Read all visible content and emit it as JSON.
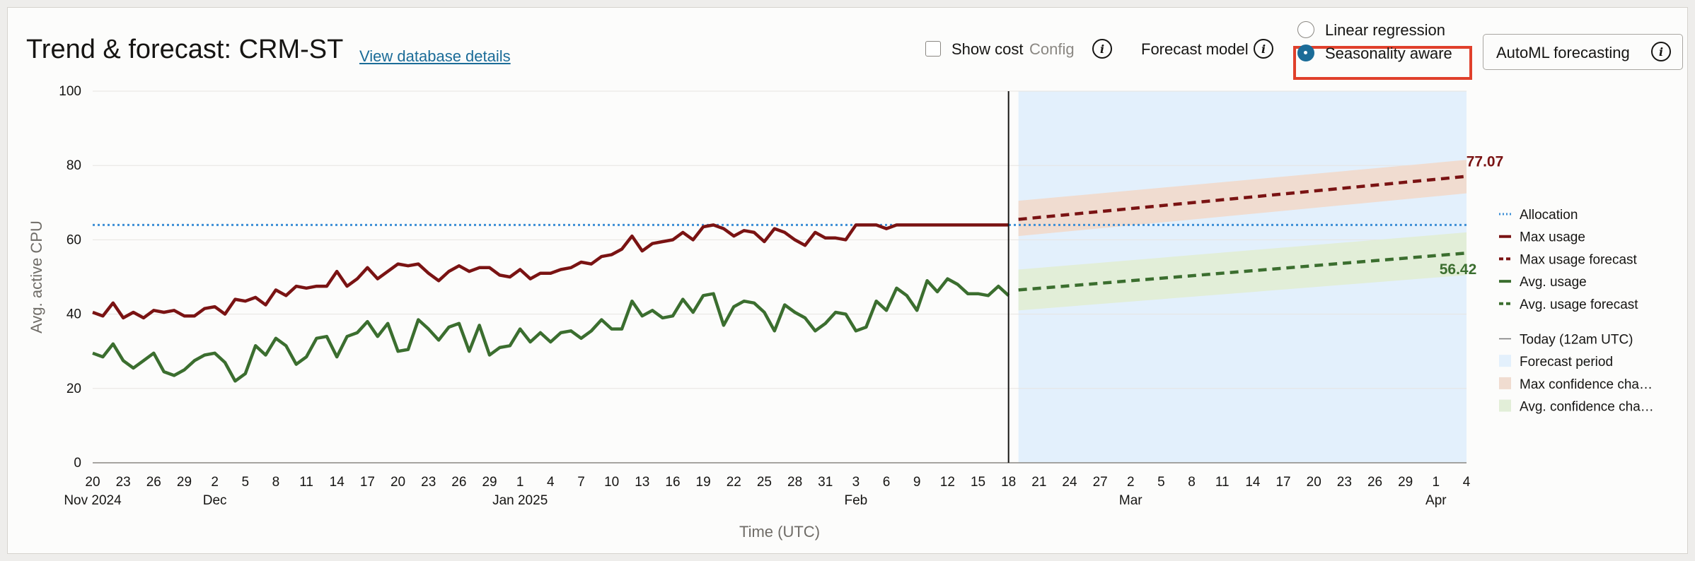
{
  "header": {
    "title": "Trend & forecast: CRM-ST",
    "db_link": "View database details",
    "show_cost_label": "Show cost",
    "config_label": "Config",
    "forecast_model_label": "Forecast model",
    "radio_linear": "Linear regression",
    "radio_seasonal": "Seasonality aware",
    "automl_label": "AutoML forecasting"
  },
  "colors": {
    "max": "#7a1313",
    "avg": "#3b6e2f",
    "allocation": "#3d8fd6",
    "forecast_bg": "#e3f0fc",
    "max_band": "#f0dcd0",
    "avg_band": "#e2eed8"
  },
  "legend": [
    {
      "label": "Allocation",
      "style": "dotted",
      "color": "#3d8fd6"
    },
    {
      "label": "Max usage",
      "style": "solid",
      "color": "#7a1313"
    },
    {
      "label": "Max usage forecast",
      "style": "dashed",
      "color": "#7a1313"
    },
    {
      "label": "Avg. usage",
      "style": "solid",
      "color": "#3b6e2f"
    },
    {
      "label": "Avg. usage forecast",
      "style": "dashed",
      "color": "#3b6e2f"
    },
    {
      "label": "Today (12am UTC)",
      "style": "thin",
      "color": "#777777"
    },
    {
      "label": "Forecast period",
      "style": "box",
      "color": "#e3f0fc"
    },
    {
      "label": "Max confidence cha…",
      "style": "box",
      "color": "#f0dcd0"
    },
    {
      "label": "Avg. confidence cha…",
      "style": "box",
      "color": "#e2eed8"
    }
  ],
  "chart_data": {
    "type": "line",
    "xlabel": "Time (UTC)",
    "ylabel": "Avg. active CPU",
    "ylim": [
      0,
      100
    ],
    "yticks": [
      0,
      20,
      40,
      60,
      80,
      100
    ],
    "x_start": "2024-11-20",
    "today": "2025-02-18",
    "x_end": "2025-04-04",
    "x_tick_labels": [
      {
        "date": "2024-11-20",
        "day": "20",
        "month": "Nov 2024"
      },
      {
        "date": "2024-11-23",
        "day": "23"
      },
      {
        "date": "2024-11-26",
        "day": "26"
      },
      {
        "date": "2024-11-29",
        "day": "29"
      },
      {
        "date": "2024-12-02",
        "day": "2",
        "month": "Dec"
      },
      {
        "date": "2024-12-05",
        "day": "5"
      },
      {
        "date": "2024-12-08",
        "day": "8"
      },
      {
        "date": "2024-12-11",
        "day": "11"
      },
      {
        "date": "2024-12-14",
        "day": "14"
      },
      {
        "date": "2024-12-17",
        "day": "17"
      },
      {
        "date": "2024-12-20",
        "day": "20"
      },
      {
        "date": "2024-12-23",
        "day": "23"
      },
      {
        "date": "2024-12-26",
        "day": "26"
      },
      {
        "date": "2024-12-29",
        "day": "29"
      },
      {
        "date": "2025-01-01",
        "day": "1",
        "month": "Jan 2025"
      },
      {
        "date": "2025-01-04",
        "day": "4"
      },
      {
        "date": "2025-01-07",
        "day": "7"
      },
      {
        "date": "2025-01-10",
        "day": "10"
      },
      {
        "date": "2025-01-13",
        "day": "13"
      },
      {
        "date": "2025-01-16",
        "day": "16"
      },
      {
        "date": "2025-01-19",
        "day": "19"
      },
      {
        "date": "2025-01-22",
        "day": "22"
      },
      {
        "date": "2025-01-25",
        "day": "25"
      },
      {
        "date": "2025-01-28",
        "day": "28"
      },
      {
        "date": "2025-01-31",
        "day": "31"
      },
      {
        "date": "2025-02-03",
        "day": "3",
        "month": "Feb"
      },
      {
        "date": "2025-02-06",
        "day": "6"
      },
      {
        "date": "2025-02-09",
        "day": "9"
      },
      {
        "date": "2025-02-12",
        "day": "12"
      },
      {
        "date": "2025-02-15",
        "day": "15"
      },
      {
        "date": "2025-02-18",
        "day": "18"
      },
      {
        "date": "2025-02-21",
        "day": "21"
      },
      {
        "date": "2025-02-24",
        "day": "24"
      },
      {
        "date": "2025-02-27",
        "day": "27"
      },
      {
        "date": "2025-03-02",
        "day": "2",
        "month": "Mar"
      },
      {
        "date": "2025-03-05",
        "day": "5"
      },
      {
        "date": "2025-03-08",
        "day": "8"
      },
      {
        "date": "2025-03-11",
        "day": "11"
      },
      {
        "date": "2025-03-14",
        "day": "14"
      },
      {
        "date": "2025-03-17",
        "day": "17"
      },
      {
        "date": "2025-03-20",
        "day": "20"
      },
      {
        "date": "2025-03-23",
        "day": "23"
      },
      {
        "date": "2025-03-26",
        "day": "26"
      },
      {
        "date": "2025-03-29",
        "day": "29"
      },
      {
        "date": "2025-04-01",
        "day": "1",
        "month": "Apr"
      },
      {
        "date": "2025-04-04",
        "day": "4"
      }
    ],
    "allocation": 64,
    "max_usage": {
      "name": "Max usage",
      "dates": [
        "2024-11-20",
        "2024-11-21",
        "2024-11-22",
        "2024-11-23",
        "2024-11-24",
        "2024-11-25",
        "2024-11-26",
        "2024-11-27",
        "2024-11-28",
        "2024-11-29",
        "2024-11-30",
        "2024-12-01",
        "2024-12-02",
        "2024-12-03",
        "2024-12-04",
        "2024-12-05",
        "2024-12-06",
        "2024-12-07",
        "2024-12-08",
        "2024-12-09",
        "2024-12-10",
        "2024-12-11",
        "2024-12-12",
        "2024-12-13",
        "2024-12-14",
        "2024-12-15",
        "2024-12-16",
        "2024-12-17",
        "2024-12-18",
        "2024-12-19",
        "2024-12-20",
        "2024-12-21",
        "2024-12-22",
        "2024-12-23",
        "2024-12-24",
        "2024-12-25",
        "2024-12-26",
        "2024-12-27",
        "2024-12-28",
        "2024-12-29",
        "2024-12-30",
        "2024-12-31",
        "2025-01-01",
        "2025-01-02",
        "2025-01-03",
        "2025-01-04",
        "2025-01-05",
        "2025-01-06",
        "2025-01-07",
        "2025-01-08",
        "2025-01-09",
        "2025-01-10",
        "2025-01-11",
        "2025-01-12",
        "2025-01-13",
        "2025-01-14",
        "2025-01-15",
        "2025-01-16",
        "2025-01-17",
        "2025-01-18",
        "2025-01-19",
        "2025-01-20",
        "2025-01-21",
        "2025-01-22",
        "2025-01-23",
        "2025-01-24",
        "2025-01-25",
        "2025-01-26",
        "2025-01-27",
        "2025-01-28",
        "2025-01-29",
        "2025-01-30",
        "2025-01-31",
        "2025-02-01",
        "2025-02-02",
        "2025-02-03",
        "2025-02-04",
        "2025-02-05",
        "2025-02-06",
        "2025-02-07",
        "2025-02-08",
        "2025-02-09",
        "2025-02-10",
        "2025-02-11",
        "2025-02-12",
        "2025-02-13",
        "2025-02-14",
        "2025-02-15",
        "2025-02-16",
        "2025-02-17",
        "2025-02-18"
      ],
      "values": [
        40.5,
        39.5,
        43,
        39,
        40.5,
        39,
        41,
        40.5,
        41,
        39.5,
        39.5,
        41.5,
        42,
        40,
        44,
        43.5,
        44.5,
        42.5,
        46.5,
        45,
        47.5,
        47,
        47.5,
        47.5,
        51.5,
        47.5,
        49.5,
        52.5,
        49.5,
        51.5,
        53.5,
        53,
        53.5,
        51,
        49,
        51.5,
        53,
        51.5,
        52.5,
        52.5,
        50.5,
        50,
        52,
        49.5,
        51,
        51,
        52,
        52.5,
        54,
        53.5,
        55.5,
        56,
        57.5,
        61,
        57,
        59,
        59.5,
        60,
        62,
        60,
        63.5,
        64,
        63,
        61,
        62.5,
        62,
        59.5,
        63,
        62,
        60,
        58.5,
        62,
        60.5,
        60.5,
        60,
        64,
        64,
        64,
        63,
        64,
        64,
        64,
        64,
        64,
        64,
        64,
        64,
        64,
        64,
        64,
        64
      ]
    },
    "avg_usage": {
      "name": "Avg. usage",
      "dates": [
        "2024-11-20",
        "2024-11-21",
        "2024-11-22",
        "2024-11-23",
        "2024-11-24",
        "2024-11-25",
        "2024-11-26",
        "2024-11-27",
        "2024-11-28",
        "2024-11-29",
        "2024-11-30",
        "2024-12-01",
        "2024-12-02",
        "2024-12-03",
        "2024-12-04",
        "2024-12-05",
        "2024-12-06",
        "2024-12-07",
        "2024-12-08",
        "2024-12-09",
        "2024-12-10",
        "2024-12-11",
        "2024-12-12",
        "2024-12-13",
        "2024-12-14",
        "2024-12-15",
        "2024-12-16",
        "2024-12-17",
        "2024-12-18",
        "2024-12-19",
        "2024-12-20",
        "2024-12-21",
        "2024-12-22",
        "2024-12-23",
        "2024-12-24",
        "2024-12-25",
        "2024-12-26",
        "2024-12-27",
        "2024-12-28",
        "2024-12-29",
        "2024-12-30",
        "2024-12-31",
        "2025-01-01",
        "2025-01-02",
        "2025-01-03",
        "2025-01-04",
        "2025-01-05",
        "2025-01-06",
        "2025-01-07",
        "2025-01-08",
        "2025-01-09",
        "2025-01-10",
        "2025-01-11",
        "2025-01-12",
        "2025-01-13",
        "2025-01-14",
        "2025-01-15",
        "2025-01-16",
        "2025-01-17",
        "2025-01-18",
        "2025-01-19",
        "2025-01-20",
        "2025-01-21",
        "2025-01-22",
        "2025-01-23",
        "2025-01-24",
        "2025-01-25",
        "2025-01-26",
        "2025-01-27",
        "2025-01-28",
        "2025-01-29",
        "2025-01-30",
        "2025-01-31",
        "2025-02-01",
        "2025-02-02",
        "2025-02-03",
        "2025-02-04",
        "2025-02-05",
        "2025-02-06",
        "2025-02-07",
        "2025-02-08",
        "2025-02-09",
        "2025-02-10",
        "2025-02-11",
        "2025-02-12",
        "2025-02-13",
        "2025-02-14",
        "2025-02-15",
        "2025-02-16",
        "2025-02-17",
        "2025-02-18"
      ],
      "values": [
        29.5,
        28.5,
        32,
        27.5,
        25.5,
        27.5,
        29.5,
        24.5,
        23.5,
        25,
        27.5,
        29,
        29.5,
        27,
        22,
        24,
        31.5,
        29,
        33.5,
        31.5,
        26.5,
        28.5,
        33.5,
        34,
        28.5,
        34,
        35,
        38,
        34,
        37.5,
        30,
        30.5,
        38.5,
        36,
        33,
        36.5,
        37.5,
        30,
        37,
        29,
        31,
        31.5,
        36,
        32.5,
        35,
        32.5,
        35,
        35.5,
        33.5,
        35.5,
        38.5,
        36,
        36,
        43.5,
        39.5,
        41,
        39,
        39.5,
        44,
        40.5,
        45,
        45.5,
        37,
        42,
        43.5,
        43,
        40.5,
        35.5,
        42.5,
        40.5,
        39,
        35.5,
        37.5,
        40.5,
        40,
        35.5,
        36.5,
        43.5,
        41,
        47,
        45,
        41,
        49,
        46,
        49.5,
        48,
        45.5,
        45.5,
        45,
        47.5,
        45
      ]
    },
    "forecast": {
      "start": "2025-02-18",
      "end": "2025-04-04",
      "max_forecast": {
        "name": "Max usage forecast",
        "start": 65.5,
        "end": 77.07
      },
      "avg_forecast": {
        "name": "Avg. usage forecast",
        "start": 46.5,
        "end": 56.42
      },
      "max_band": {
        "start": [
          61,
          70.5
        ],
        "end": [
          72.5,
          81.5
        ]
      },
      "avg_band": {
        "start": [
          41,
          52
        ],
        "end": [
          50.5,
          62
        ]
      },
      "max_end_label": "77.07",
      "avg_end_label": "56.42"
    }
  }
}
